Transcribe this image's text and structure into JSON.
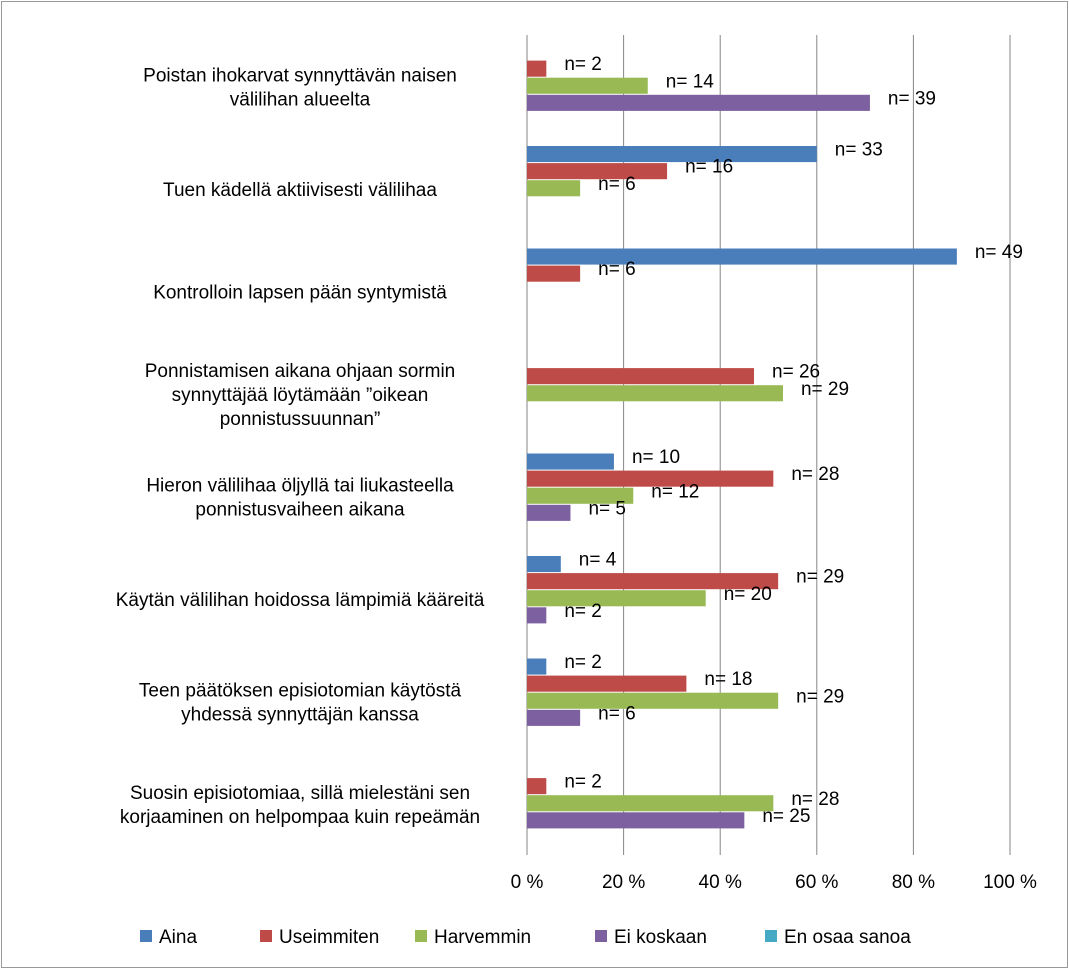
{
  "chart_data": {
    "type": "bar",
    "orientation": "horizontal",
    "categories": [
      "Poistan ihokarvat synnyttävän naisen\nvälilihan alueelta",
      "Tuen kädellä aktiivisesti välilihaa",
      "Kontrolloin lapsen pään syntymistä",
      "Ponnistamisen aikana ohjaan sormin\nsynnyttäjää löytämään ”oikean\nponnistussuunnan”",
      "Hieron välilihaa öljyllä tai liukasteella\nponnistusvaiheen aikana",
      "Käytän välilihan hoidossa lämpimiä kääreitä",
      "Teen päätöksen episiotomian käytöstä\nyhdessä synnyttäjän kanssa",
      "Suosin episiotomiaa, sillä mielestäni sen\nkorjaaminen on helpompaa kuin repeämän"
    ],
    "series": [
      {
        "name": "Aina",
        "color": "#4a7ebb",
        "values": [
          null,
          60,
          89,
          null,
          18,
          7,
          4,
          null
        ],
        "value_labels": [
          null,
          "n= 33",
          "n= 49",
          null,
          "n= 10",
          "n= 4",
          "n= 2",
          null
        ]
      },
      {
        "name": "Useimmiten",
        "color": "#be4b48",
        "values": [
          4,
          29,
          11,
          47,
          51,
          52,
          33,
          4
        ],
        "value_labels": [
          "n= 2",
          "n= 16",
          "n= 6",
          "n= 26",
          "n= 28",
          "n= 29",
          "n= 18",
          "n= 2"
        ]
      },
      {
        "name": "Harvemmin",
        "color": "#98b954",
        "values": [
          25,
          11,
          null,
          53,
          22,
          37,
          52,
          51
        ],
        "value_labels": [
          "n= 14",
          "n= 6",
          null,
          "n= 29",
          "n= 12",
          "n= 20",
          "n= 29",
          "n= 28"
        ]
      },
      {
        "name": "Ei koskaan",
        "color": "#7d60a0",
        "values": [
          71,
          null,
          null,
          null,
          9,
          4,
          11,
          45
        ],
        "value_labels": [
          "n= 39",
          null,
          null,
          null,
          "n= 5",
          "n= 2",
          "n= 6",
          "n= 25"
        ]
      },
      {
        "name": "En osaa sanoa",
        "color": "#46aac5",
        "values": [
          null,
          null,
          null,
          null,
          null,
          null,
          null,
          null
        ],
        "value_labels": [
          null,
          null,
          null,
          null,
          null,
          null,
          null,
          null
        ]
      }
    ],
    "xlim": [
      0,
      100
    ],
    "xticks": [
      {
        "value": 0,
        "label": "0 %"
      },
      {
        "value": 20,
        "label": "20 %"
      },
      {
        "value": 40,
        "label": "40 %"
      },
      {
        "value": 60,
        "label": "60 %"
      },
      {
        "value": 80,
        "label": "80 %"
      },
      {
        "value": 100,
        "label": "100 %"
      }
    ],
    "grid": true,
    "legend": "bottom"
  }
}
